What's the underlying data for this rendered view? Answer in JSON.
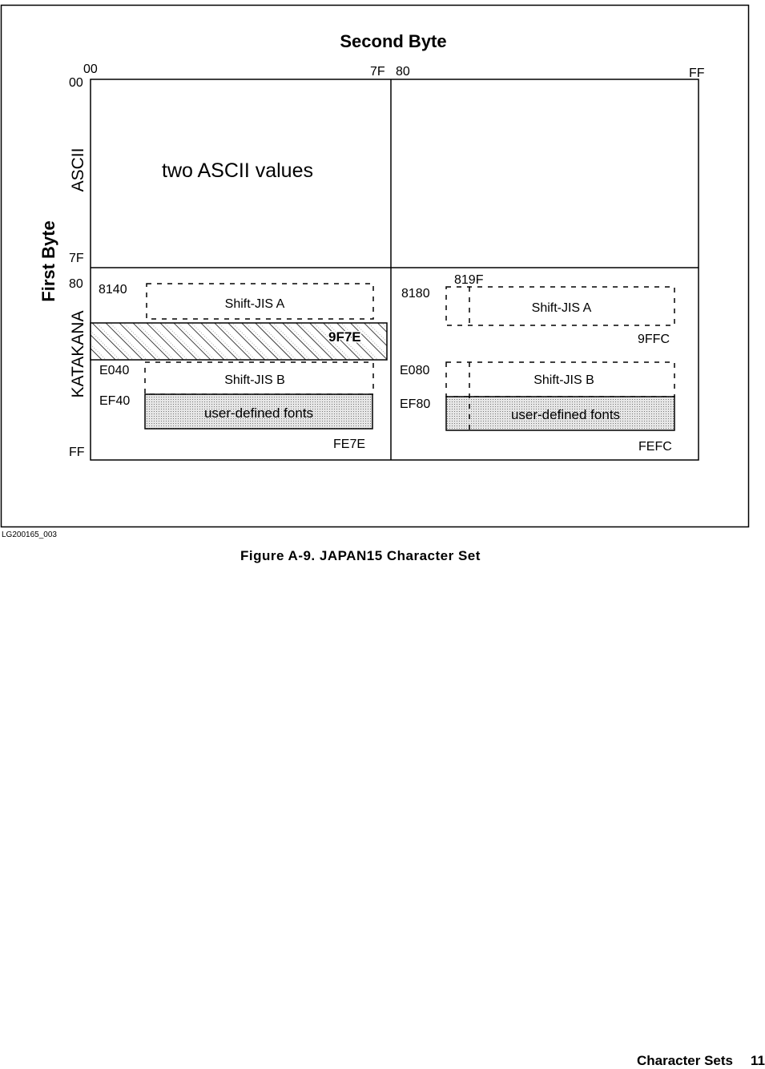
{
  "diagram": {
    "top_title": "Second Byte",
    "side_title": "First Byte",
    "top_ticks": [
      "00",
      "7F",
      "80",
      "FF"
    ],
    "side_ticks": [
      "00",
      "7F",
      "80",
      "FF"
    ],
    "ascii_label": "ASCII",
    "katakana_label": "KATAKANA",
    "ascii_region": "two ASCII values",
    "left": {
      "sjis_a_start": "8140",
      "sjis_a_label": "Shift-JIS A",
      "hatched_end": "9F7E",
      "sjis_b_start": "E040",
      "sjis_b_label": "Shift-JIS B",
      "udf_start": "EF40",
      "udf_label": "user-defined fonts",
      "end": "FE7E"
    },
    "right": {
      "sjis_a_start": "8180",
      "sjis_a_inner": "819F",
      "sjis_a_label": "Shift-JIS A",
      "sjis_a_end": "9FFC",
      "sjis_b_start": "E080",
      "sjis_b_label": "Shift-JIS B",
      "udf_start": "EF80",
      "udf_label": "user-defined fonts",
      "end": "FEFC"
    }
  },
  "figure_id": "LG200165_003",
  "caption": "Figure A-9. JAPAN15 Character Set",
  "footer": {
    "section": "Character Sets",
    "page": "11"
  }
}
